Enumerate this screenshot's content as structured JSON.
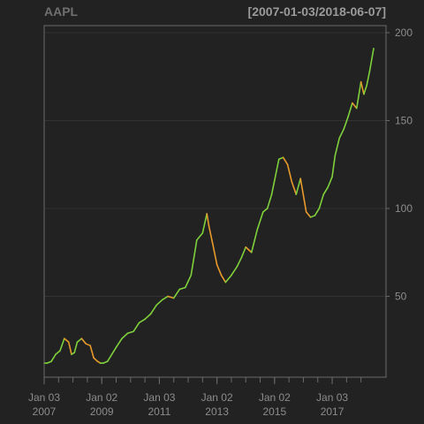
{
  "chart_data": {
    "type": "line",
    "title": "AAPL",
    "subtitle": "[2007-01-03/2018-06-07]",
    "x_tick_labels": [
      {
        "line1": "Jan 03",
        "line2": "2007"
      },
      {
        "line1": "Jan 02",
        "line2": "2009"
      },
      {
        "line1": "Jan 03",
        "line2": "2011"
      },
      {
        "line1": "Jan 02",
        "line2": "2013"
      },
      {
        "line1": "Jan 02",
        "line2": "2015"
      },
      {
        "line1": "Jan 03",
        "line2": "2017"
      }
    ],
    "x_tick_years": [
      2007.0,
      2009.0,
      2011.0,
      2013.0,
      2015.0,
      2017.0
    ],
    "xlim": [
      2007.0,
      2018.44
    ],
    "y_ticks": [
      50,
      100,
      150,
      200
    ],
    "ylim": [
      4,
      200
    ],
    "grid": true,
    "colors": {
      "background": "#222222",
      "frame": "#6a6a6a",
      "grid": "#333333",
      "up": "#7fd13b",
      "down": "#e89a2a",
      "text": "#8c8c8c"
    },
    "series": [
      {
        "x": [
          2007.0,
          2007.1,
          2007.25,
          2007.4,
          2007.55,
          2007.7,
          2007.85,
          2007.95,
          2008.05,
          2008.15,
          2008.3,
          2008.45,
          2008.6,
          2008.72,
          2008.85,
          2008.95,
          2009.05,
          2009.2,
          2009.35,
          2009.5,
          2009.7,
          2009.9,
          2010.1,
          2010.3,
          2010.5,
          2010.7,
          2010.9,
          2011.1,
          2011.3,
          2011.5,
          2011.7,
          2011.9,
          2012.1,
          2012.3,
          2012.5,
          2012.65,
          2012.72,
          2012.85,
          2013.0,
          2013.15,
          2013.3,
          2013.5,
          2013.7,
          2013.85,
          2014.0,
          2014.2,
          2014.4,
          2014.6,
          2014.75,
          2014.9,
          2015.0,
          2015.15,
          2015.3,
          2015.45,
          2015.6,
          2015.75,
          2015.9,
          2016.1,
          2016.25,
          2016.4,
          2016.55,
          2016.7,
          2016.85,
          2017.0,
          2017.1,
          2017.25,
          2017.4,
          2017.55,
          2017.7,
          2017.85,
          2018.0,
          2018.1,
          2018.2,
          2018.3,
          2018.44
        ],
        "y": [
          12,
          12,
          13,
          17,
          19,
          26,
          24,
          17,
          18,
          24,
          26,
          23,
          22,
          15,
          13,
          12,
          12,
          13,
          17,
          21,
          26,
          29,
          30,
          35,
          37,
          40,
          45,
          48,
          50,
          49,
          54,
          55,
          62,
          82,
          86,
          97,
          90,
          80,
          68,
          62,
          58,
          62,
          67,
          72,
          78,
          75,
          88,
          98,
          100,
          108,
          116,
          128,
          129,
          125,
          115,
          108,
          117,
          98,
          95,
          96,
          100,
          108,
          112,
          118,
          130,
          140,
          145,
          152,
          160,
          157,
          172,
          165,
          170,
          178,
          191
        ]
      }
    ]
  }
}
